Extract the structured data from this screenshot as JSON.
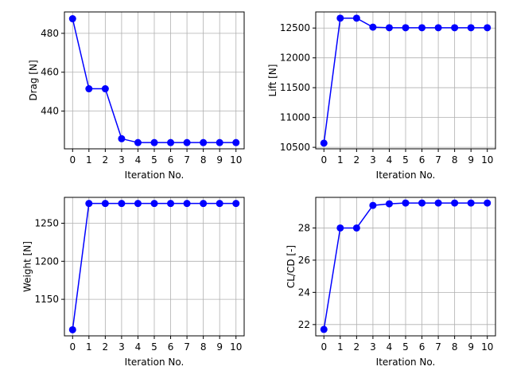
{
  "style": {
    "line_color": "#0000ff",
    "grid_color": "#b0b0b0",
    "frame_color": "#000000",
    "background": "#ffffff"
  },
  "chart_data": [
    {
      "type": "line",
      "xlabel": "Iteration No.",
      "ylabel": "Drag [N]",
      "grid": true,
      "x": [
        0,
        1,
        2,
        3,
        4,
        5,
        6,
        7,
        8,
        9,
        10
      ],
      "series": [
        {
          "values": [
            487.5,
            451.5,
            451.5,
            425.8,
            423.8,
            423.8,
            423.8,
            423.8,
            423.8,
            423.8,
            423.8
          ]
        }
      ],
      "xlim": [
        -0.5,
        10.5
      ],
      "ylim": [
        420.6,
        491.0
      ],
      "xticks": [
        0,
        1,
        2,
        3,
        4,
        5,
        6,
        7,
        8,
        9,
        10
      ],
      "yticks": [
        440,
        460,
        480
      ]
    },
    {
      "type": "line",
      "xlabel": "Iteration No.",
      "ylabel": "Lift [N]",
      "grid": true,
      "x": [
        0,
        1,
        2,
        3,
        4,
        5,
        6,
        7,
        8,
        9,
        10
      ],
      "series": [
        {
          "values": [
            10570,
            12665,
            12665,
            12515,
            12505,
            12505,
            12505,
            12505,
            12505,
            12505,
            12505
          ]
        }
      ],
      "xlim": [
        -0.5,
        10.5
      ],
      "ylim": [
        10475,
        12770
      ],
      "xticks": [
        0,
        1,
        2,
        3,
        4,
        5,
        6,
        7,
        8,
        9,
        10
      ],
      "yticks": [
        10500,
        11000,
        11500,
        12000,
        12500
      ]
    },
    {
      "type": "line",
      "xlabel": "Iteration No.",
      "ylabel": "Weight [N]",
      "grid": true,
      "x": [
        0,
        1,
        2,
        3,
        4,
        5,
        6,
        7,
        8,
        9,
        10
      ],
      "series": [
        {
          "values": [
            1110,
            1276,
            1276,
            1276,
            1276,
            1276,
            1276,
            1276,
            1276,
            1276,
            1276
          ]
        }
      ],
      "xlim": [
        -0.5,
        10.5
      ],
      "ylim": [
        1102,
        1284
      ],
      "xticks": [
        0,
        1,
        2,
        3,
        4,
        5,
        6,
        7,
        8,
        9,
        10
      ],
      "yticks": [
        1150,
        1200,
        1250
      ]
    },
    {
      "type": "line",
      "xlabel": "Iteration No.",
      "ylabel": "CL/CD [-]",
      "grid": true,
      "x": [
        0,
        1,
        2,
        3,
        4,
        5,
        6,
        7,
        8,
        9,
        10
      ],
      "series": [
        {
          "values": [
            21.7,
            28.0,
            28.0,
            29.4,
            29.5,
            29.55,
            29.55,
            29.55,
            29.55,
            29.55,
            29.55
          ]
        }
      ],
      "xlim": [
        -0.5,
        10.5
      ],
      "ylim": [
        21.3,
        29.9
      ],
      "xticks": [
        0,
        1,
        2,
        3,
        4,
        5,
        6,
        7,
        8,
        9,
        10
      ],
      "yticks": [
        22,
        24,
        26,
        28
      ]
    }
  ]
}
